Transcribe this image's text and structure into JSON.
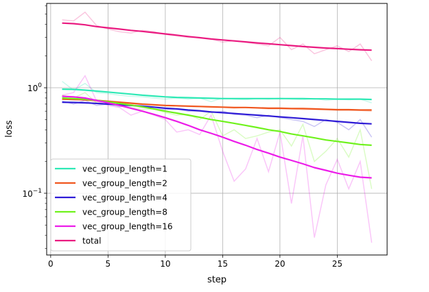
{
  "chart_data": {
    "type": "line",
    "title": "",
    "xlabel": "step",
    "ylabel": "loss",
    "xlim": [
      -0.35,
      29.35
    ],
    "ylim": [
      0.026,
      6.3
    ],
    "yscale": "log",
    "grid": true,
    "legend_position": "lower-left",
    "xticks": [
      0,
      5,
      10,
      15,
      20,
      25
    ],
    "xtick_labels": [
      "0",
      "5",
      "10",
      "15",
      "20",
      "25"
    ],
    "yticks": [
      0.1,
      1
    ],
    "ytick_labels": [
      "10^-1",
      "10^0"
    ],
    "x": [
      1,
      2,
      3,
      4,
      5,
      6,
      7,
      8,
      9,
      10,
      11,
      12,
      13,
      14,
      15,
      16,
      17,
      18,
      19,
      20,
      21,
      22,
      23,
      24,
      25,
      26,
      27,
      28
    ],
    "series": [
      {
        "name": "vec_group_length=1",
        "color": "#2de9b5",
        "values": [
          0.97,
          0.965,
          0.95,
          0.93,
          0.91,
          0.89,
          0.87,
          0.85,
          0.835,
          0.82,
          0.81,
          0.805,
          0.8,
          0.795,
          0.79,
          0.79,
          0.79,
          0.79,
          0.79,
          0.79,
          0.79,
          0.79,
          0.785,
          0.785,
          0.78,
          0.78,
          0.78,
          0.775
        ],
        "raw": [
          1.15,
          0.95,
          1.1,
          0.9,
          0.88,
          0.85,
          0.83,
          0.82,
          0.8,
          0.78,
          0.8,
          0.78,
          0.8,
          0.74,
          0.8,
          0.78,
          0.77,
          0.79,
          0.78,
          0.8,
          0.78,
          0.77,
          0.79,
          0.76,
          0.78,
          0.77,
          0.78,
          0.72
        ]
      },
      {
        "name": "vec_group_length=2",
        "color": "#f0561e",
        "values": [
          0.78,
          0.775,
          0.77,
          0.76,
          0.745,
          0.73,
          0.715,
          0.7,
          0.69,
          0.68,
          0.675,
          0.67,
          0.665,
          0.66,
          0.655,
          0.65,
          0.65,
          0.645,
          0.64,
          0.64,
          0.635,
          0.635,
          0.63,
          0.625,
          0.62,
          0.62,
          0.615,
          0.615
        ],
        "raw": [
          0.8,
          0.78,
          0.76,
          0.74,
          0.73,
          0.72,
          0.7,
          0.7,
          0.68,
          0.67,
          0.67,
          0.66,
          0.66,
          0.65,
          0.65,
          0.64,
          0.65,
          0.64,
          0.63,
          0.63,
          0.63,
          0.62,
          0.62,
          0.62,
          0.61,
          0.61,
          0.61,
          0.6
        ]
      },
      {
        "name": "vec_group_length=4",
        "color": "#2e1bd6",
        "values": [
          0.73,
          0.725,
          0.72,
          0.71,
          0.7,
          0.69,
          0.68,
          0.67,
          0.655,
          0.64,
          0.63,
          0.615,
          0.605,
          0.59,
          0.58,
          0.57,
          0.56,
          0.55,
          0.54,
          0.53,
          0.52,
          0.51,
          0.5,
          0.49,
          0.48,
          0.47,
          0.46,
          0.455
        ],
        "raw": [
          0.75,
          0.7,
          0.76,
          0.68,
          0.7,
          0.66,
          0.68,
          0.65,
          0.63,
          0.62,
          0.63,
          0.6,
          0.6,
          0.58,
          0.6,
          0.56,
          0.55,
          0.52,
          0.55,
          0.52,
          0.5,
          0.48,
          0.43,
          0.5,
          0.47,
          0.4,
          0.5,
          0.34
        ]
      },
      {
        "name": "vec_group_length=8",
        "color": "#6ff21c",
        "values": [
          0.8,
          0.79,
          0.78,
          0.76,
          0.735,
          0.71,
          0.685,
          0.66,
          0.63,
          0.6,
          0.575,
          0.55,
          0.525,
          0.5,
          0.48,
          0.46,
          0.44,
          0.42,
          0.4,
          0.385,
          0.365,
          0.35,
          0.335,
          0.32,
          0.31,
          0.3,
          0.29,
          0.285
        ],
        "raw": [
          0.85,
          0.8,
          0.9,
          0.72,
          0.7,
          0.68,
          0.65,
          0.62,
          0.63,
          0.58,
          0.55,
          0.56,
          0.5,
          0.6,
          0.35,
          0.4,
          0.33,
          0.35,
          0.38,
          0.4,
          0.28,
          0.45,
          0.2,
          0.25,
          0.33,
          0.22,
          0.4,
          0.11
        ]
      },
      {
        "name": "vec_group_length=16",
        "color": "#ec1ce9",
        "values": [
          0.83,
          0.82,
          0.8,
          0.76,
          0.72,
          0.68,
          0.64,
          0.6,
          0.56,
          0.52,
          0.48,
          0.44,
          0.4,
          0.37,
          0.34,
          0.31,
          0.285,
          0.26,
          0.24,
          0.22,
          0.205,
          0.19,
          0.175,
          0.165,
          0.155,
          0.148,
          0.142,
          0.14
        ],
        "raw": [
          0.85,
          0.9,
          1.3,
          0.75,
          0.68,
          0.65,
          0.55,
          0.6,
          0.55,
          0.5,
          0.38,
          0.4,
          0.36,
          0.55,
          0.25,
          0.13,
          0.17,
          0.33,
          0.16,
          0.38,
          0.08,
          0.35,
          0.038,
          0.12,
          0.21,
          0.11,
          0.2,
          0.034
        ]
      },
      {
        "name": "total",
        "color": "#ea1a80",
        "values": [
          4.1,
          4.05,
          3.95,
          3.8,
          3.7,
          3.6,
          3.5,
          3.42,
          3.33,
          3.24,
          3.15,
          3.06,
          2.98,
          2.9,
          2.84,
          2.78,
          2.72,
          2.66,
          2.61,
          2.56,
          2.51,
          2.46,
          2.42,
          2.38,
          2.35,
          2.32,
          2.29,
          2.27
        ],
        "raw": [
          4.4,
          4.3,
          5.2,
          3.9,
          3.6,
          3.4,
          3.3,
          3.5,
          3.4,
          3.2,
          3.1,
          3.0,
          3.0,
          2.9,
          2.7,
          2.8,
          2.7,
          2.6,
          2.5,
          3.0,
          2.3,
          2.6,
          2.1,
          2.3,
          2.5,
          2.2,
          2.6,
          1.8
        ]
      }
    ]
  }
}
